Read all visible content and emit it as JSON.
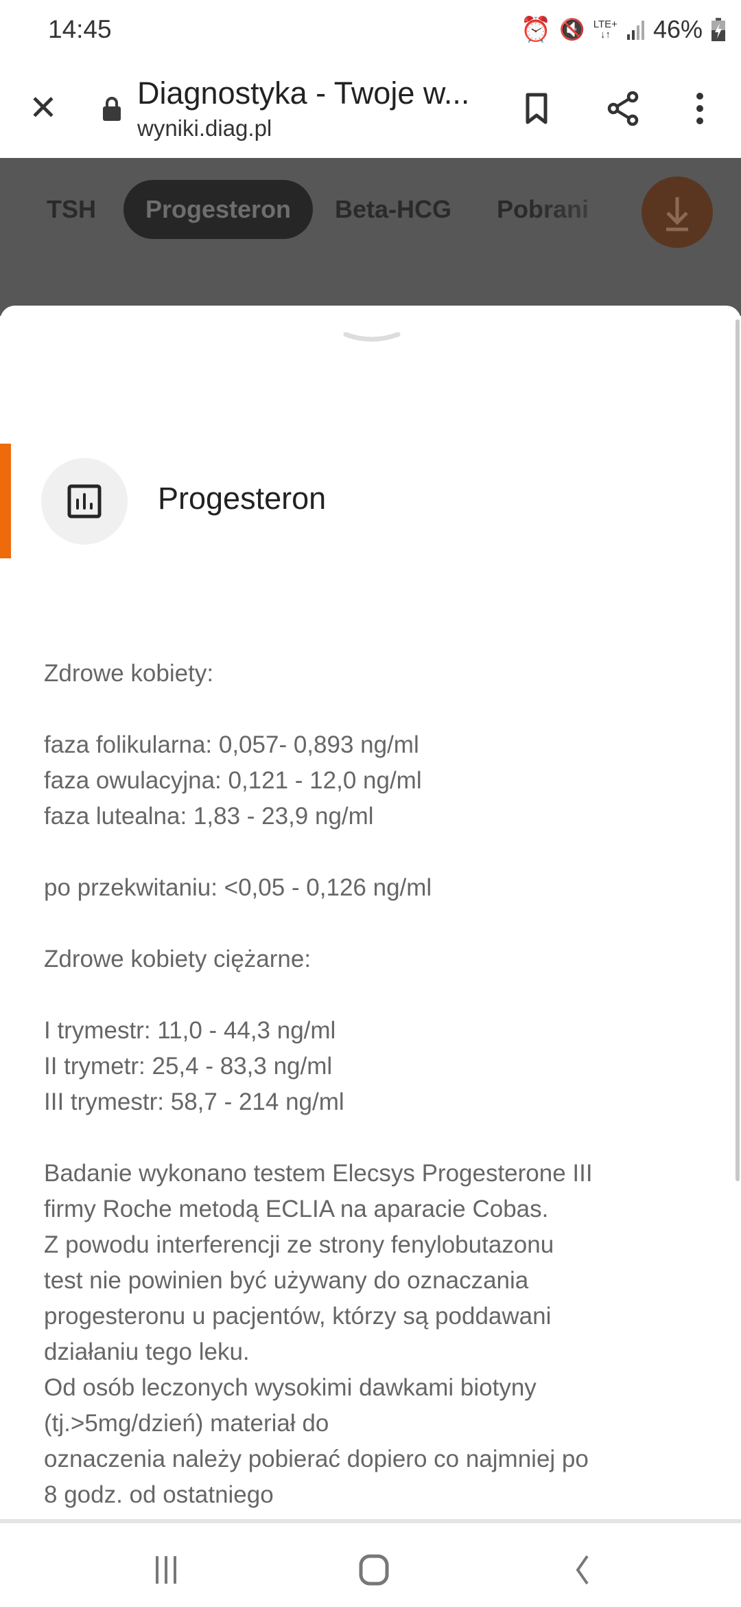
{
  "status_bar": {
    "time": "14:45",
    "network": "LTE+",
    "battery": "46%",
    "icons": [
      "alarm-icon",
      "mute-vibrate-icon",
      "lte-icon",
      "signal-icon",
      "battery-charging-icon"
    ]
  },
  "browser": {
    "title": "Diagnostyka - Twoje w...",
    "url": "wyniki.diag.pl"
  },
  "tabs": [
    {
      "label": "TSH"
    },
    {
      "label": "Progesteron",
      "active": true
    },
    {
      "label": "Beta-HCG"
    },
    {
      "label": "Pobrani"
    }
  ],
  "accent_color": "#ee6a0c",
  "sheet": {
    "title": "Progesteron",
    "icon": "bar-chart-icon",
    "lines": [
      "Zdrowe kobiety:",
      "",
      "faza folikularna: 0,057- 0,893 ng/ml",
      "faza owulacyjna: 0,121 - 12,0 ng/ml",
      "faza lutealna: 1,83 - 23,9 ng/ml",
      "",
      "po przekwitaniu: <0,05 - 0,126 ng/ml",
      "",
      "Zdrowe kobiety ciężarne:",
      "",
      "I trymestr: 11,0 - 44,3 ng/ml",
      "II trymetr: 25,4 - 83,3 ng/ml",
      "III trymestr: 58,7 - 214 ng/ml",
      "",
      "Badanie wykonano testem Elecsys Progesterone III",
      "firmy Roche metodą ECLIA na aparacie Cobas.",
      "Z powodu interferencji ze strony fenylobutazonu",
      "test nie powinien być używany do oznaczania",
      "progesteronu u pacjentów, którzy są poddawani",
      "działaniu tego leku.",
      "Od osób leczonych wysokimi dawkami biotyny",
      "(tj.>5mg/dzień) materiał do",
      "oznaczenia należy pobierać dopiero co najmniej po",
      "8 godz. od ostatniego"
    ]
  }
}
